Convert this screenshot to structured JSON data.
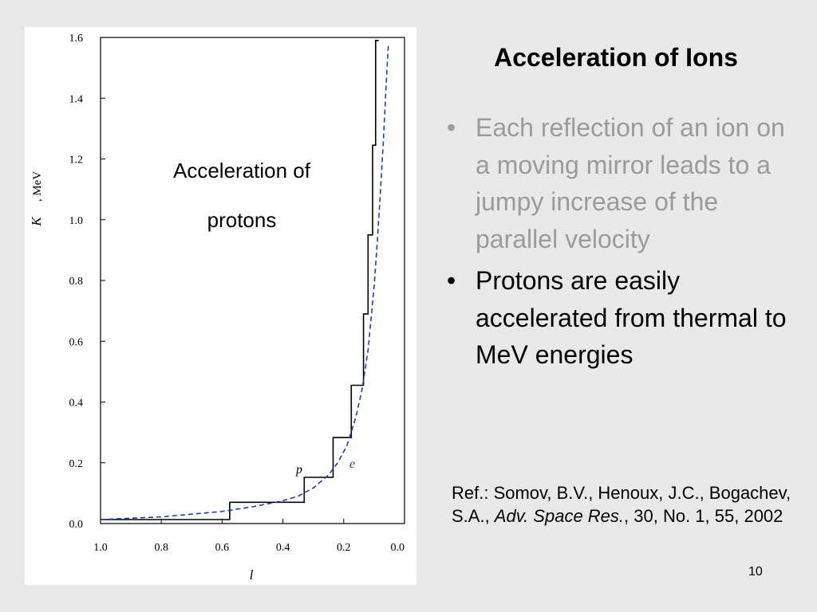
{
  "slide": {
    "title": "Acceleration of Ions",
    "bullets": [
      "Each reflection of an ion on a moving mirror leads to a jumpy increase of the parallel velocity",
      "Protons are easily accelerated from thermal to MeV energies"
    ],
    "reference": {
      "prefix": "Ref.: Somov, B.V., Henoux, J.C., Bogachev, S.A., ",
      "journal": "Adv. Space Res.",
      "suffix": ", 30, No. 1, 55, 2002"
    },
    "page_number": "10"
  },
  "chart_data": {
    "type": "line",
    "xlabel": "l",
    "ylabel_var": "K",
    "ylabel_unit": ", MeV",
    "xlim": [
      1.0,
      0.0
    ],
    "ylim": [
      0.0,
      1.6
    ],
    "x_tick_labels": [
      "1.0",
      "0.8",
      "0.6",
      "0.4",
      "0.2",
      "0.0"
    ],
    "y_tick_labels": [
      "0.0",
      "0.2",
      "0.4",
      "0.6",
      "0.8",
      "1.0",
      "1.2",
      "1.4",
      "1.6"
    ],
    "annotation": [
      "Acceleration of",
      "protons"
    ],
    "series": [
      {
        "name": "p",
        "style": "solid-step",
        "color": "#000000",
        "x": [
          1.0,
          0.575,
          0.575,
          0.33,
          0.33,
          0.235,
          0.235,
          0.175,
          0.175,
          0.135,
          0.135,
          0.12,
          0.12,
          0.105,
          0.105,
          0.095,
          0.095,
          0.085
        ],
        "y": [
          0.013,
          0.013,
          0.07,
          0.07,
          0.152,
          0.152,
          0.283,
          0.283,
          0.455,
          0.455,
          0.69,
          0.69,
          0.95,
          0.95,
          1.245,
          1.245,
          1.59,
          1.59
        ]
      },
      {
        "name": "e",
        "style": "dashed",
        "color": "#1f3fa8",
        "x": [
          1.0,
          0.8,
          0.6,
          0.5,
          0.4,
          0.35,
          0.3,
          0.25,
          0.22,
          0.19,
          0.16,
          0.14,
          0.12,
          0.1,
          0.09,
          0.08,
          0.07,
          0.06,
          0.053
        ],
        "y": [
          0.013,
          0.022,
          0.04,
          0.055,
          0.075,
          0.09,
          0.117,
          0.16,
          0.2,
          0.255,
          0.35,
          0.44,
          0.57,
          0.78,
          0.92,
          1.08,
          1.25,
          1.45,
          1.58
        ]
      }
    ]
  }
}
